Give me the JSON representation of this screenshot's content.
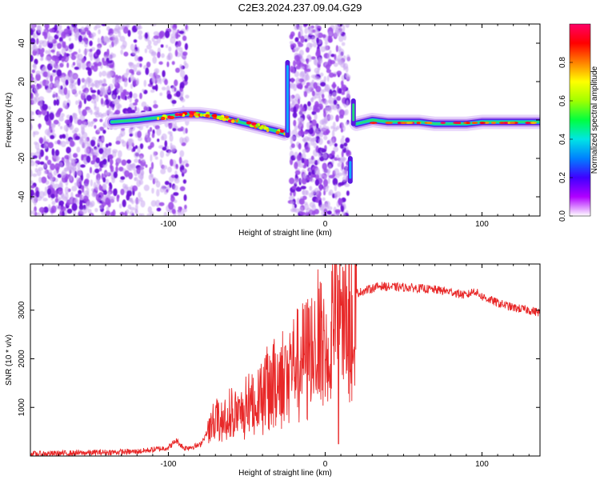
{
  "title": "C2E3.2024.237.09.04.G29",
  "chart_data": [
    {
      "type": "heatmap",
      "xlabel": "Height of straight line (km)",
      "ylabel": "Frequency (Hz)",
      "xlim": [
        -188,
        137
      ],
      "ylim": [
        -50,
        50
      ],
      "xticks": [
        -100,
        0,
        100
      ],
      "yticks": [
        -40,
        -20,
        0,
        20,
        40
      ],
      "colorbar": {
        "label": "Normalized spectral amplitude",
        "range": [
          0,
          1
        ],
        "ticks": [
          "0.0",
          "0.2",
          "0.4",
          "0.6",
          "0.8"
        ],
        "colors": [
          "#ffffff",
          "#b000ff",
          "#4000ff",
          "#0080ff",
          "#00e5e5",
          "#00ff40",
          "#a0ff00",
          "#ffff00",
          "#ff8000",
          "#ff0000",
          "#ff0066"
        ]
      },
      "ridge": {
        "x": [
          -136,
          -120,
          -110,
          -100,
          -90,
          -80,
          -70,
          -60,
          -50,
          -40,
          -30,
          -26,
          20,
          30,
          40,
          50,
          60,
          70,
          80,
          90,
          100,
          110,
          120,
          137
        ],
        "y": [
          -1,
          0,
          1,
          2,
          3,
          3,
          2,
          0,
          -2,
          -4,
          -6,
          -7,
          -2,
          0,
          -1,
          -1,
          -1,
          -2,
          -2,
          -2,
          -1,
          -1,
          -1,
          -1
        ]
      }
    },
    {
      "type": "line",
      "xlabel": "Height of straight line (km)",
      "ylabel": "SNR (10 * v/v)",
      "xlim": [
        -188,
        137
      ],
      "ylim": [
        0,
        3950
      ],
      "xticks": [
        -100,
        0,
        100
      ],
      "yticks": [
        1000,
        2000,
        3000
      ],
      "series": [
        {
          "color": "#e82828",
          "x": [
            -188,
            -160,
            -120,
            -100,
            -95,
            -90,
            -80,
            -75,
            -70,
            -65,
            -60,
            -55,
            -50,
            -45,
            -40,
            -35,
            -30,
            -25,
            -20,
            -15,
            -10,
            -5,
            0,
            3,
            6,
            8,
            10,
            13,
            16,
            20,
            25,
            30,
            35,
            40,
            50,
            60,
            70,
            80,
            90,
            95,
            100,
            110,
            120,
            130,
            137
          ],
          "values": [
            40,
            60,
            90,
            170,
            320,
            160,
            220,
            500,
            800,
            700,
            1000,
            850,
            1100,
            1200,
            1400,
            1500,
            1650,
            1850,
            1950,
            2050,
            2200,
            2500,
            2250,
            2450,
            3000,
            2500,
            3100,
            2950,
            3200,
            3350,
            3400,
            3450,
            3500,
            3480,
            3470,
            3450,
            3420,
            3380,
            3300,
            3400,
            3280,
            3150,
            3050,
            3000,
            2950
          ]
        }
      ]
    }
  ]
}
